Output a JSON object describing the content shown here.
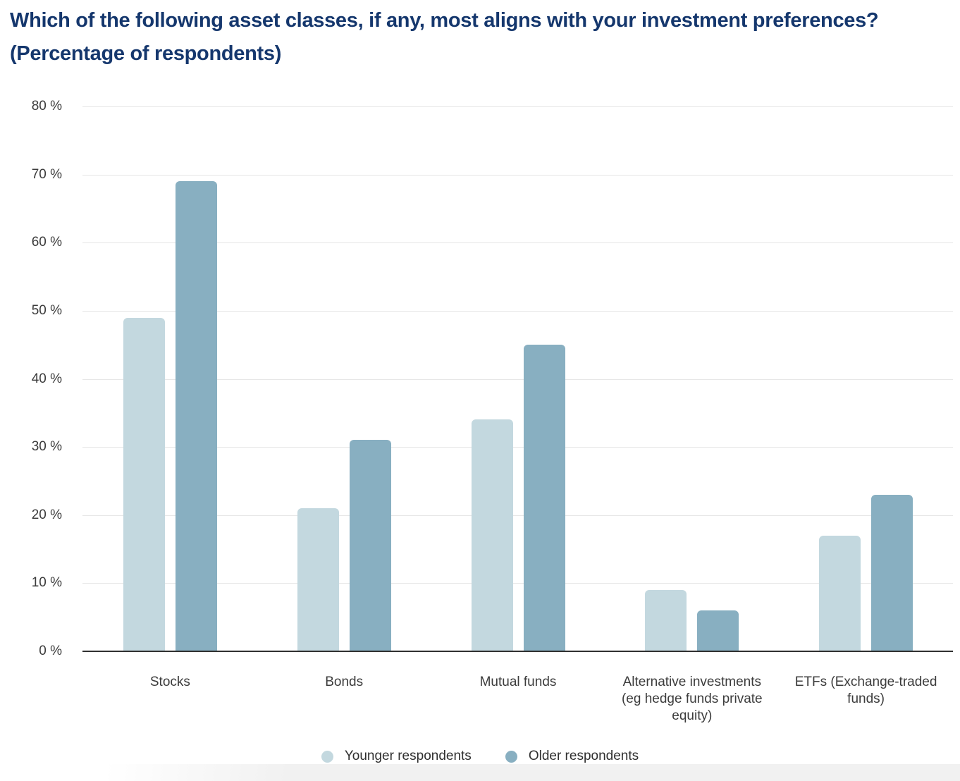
{
  "title_lines": [
    "Which of the following asset classes, if any, most aligns with your investment preferences?",
    "(Percentage of respondents)"
  ],
  "colors": {
    "title": "#15376d",
    "gridline": "#e6e6e6",
    "axis_line": "#303030",
    "tick_label": "#3c3c3c",
    "legend_text": "#2f2f2f",
    "younger_series": "#c3d8df",
    "older_series": "#88afc1"
  },
  "chart_data": {
    "type": "bar",
    "title": "Which of the following asset classes, if any, most aligns with your investment preferences? (Percentage of respondents)",
    "categories": [
      "Stocks",
      "Bonds",
      "Mutual funds",
      "Alternative investments (eg hedge funds private equity)",
      "ETFs (Exchange-traded funds)"
    ],
    "categories_display_lines": [
      [
        "Stocks"
      ],
      [
        "Bonds"
      ],
      [
        "Mutual funds"
      ],
      [
        "Alternative investments",
        "(eg hedge funds private",
        "equity)"
      ],
      [
        "ETFs (Exchange-traded",
        "funds)"
      ]
    ],
    "series": [
      {
        "name": "Younger respondents",
        "color": "#c3d8df",
        "values": [
          49,
          21,
          34,
          9,
          17
        ]
      },
      {
        "name": "Older respondents",
        "color": "#88afc1",
        "values": [
          69,
          31,
          45,
          6,
          23
        ]
      }
    ],
    "xlabel": "",
    "ylabel": "",
    "ylim": [
      0,
      80
    ],
    "ytick_step": 10,
    "ytick_suffix": " %",
    "grid": true,
    "legend_position": "bottom"
  }
}
